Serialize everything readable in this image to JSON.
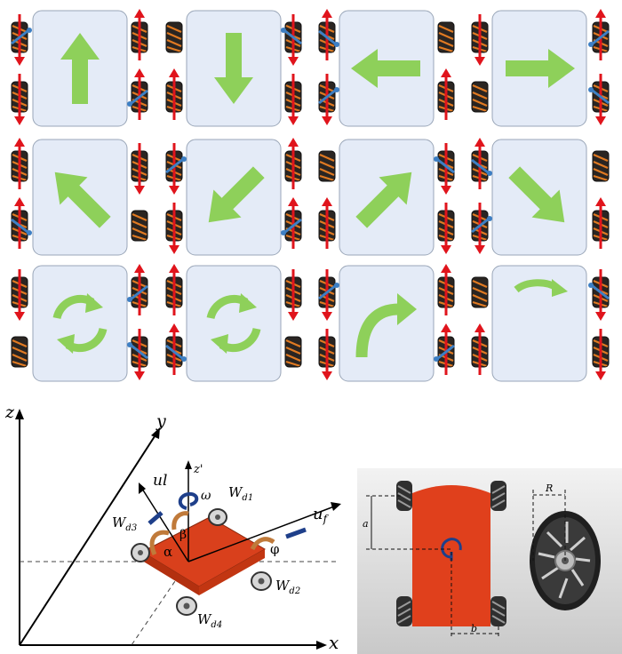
{
  "colors": {
    "arrow_green": "#8ed05a",
    "tile_fill": "#e4ebf7",
    "tile_border": "#9aa6b8",
    "force_red": "#e0141c",
    "roller_blue": "#3d7fc4",
    "chassis_orange": "#d9401c",
    "spin_brown": "#c07a3a",
    "vector_navy": "#1e3f8a"
  },
  "movement_grid": {
    "tiles": [
      {
        "motion": "forward",
        "icon": "arrow-up-icon"
      },
      {
        "motion": "backward",
        "icon": "arrow-down-icon"
      },
      {
        "motion": "left",
        "icon": "arrow-left-icon"
      },
      {
        "motion": "right",
        "icon": "arrow-right-icon"
      },
      {
        "motion": "diagonal-forward-left",
        "icon": "arrow-up-left-icon"
      },
      {
        "motion": "diagonal-backward-left",
        "icon": "arrow-down-left-icon"
      },
      {
        "motion": "diagonal-forward-right",
        "icon": "arrow-up-right-icon"
      },
      {
        "motion": "diagonal-backward-right",
        "icon": "arrow-down-right-icon"
      },
      {
        "motion": "rotate",
        "icon": "circular-arrows-icon"
      },
      {
        "motion": "rotate",
        "icon": "circular-arrows-icon"
      },
      {
        "motion": "turn-right-curve",
        "icon": "curved-arrow-icon"
      },
      {
        "motion": "pivot-turn",
        "icon": "short-curved-arrow-icon"
      }
    ]
  },
  "kinematics": {
    "axis_z": "z",
    "axis_y": "y",
    "axis_x": "x",
    "z_prime": "z'",
    "omega": "ω",
    "forward_velocity": "u",
    "forward_velocity_sub": "f",
    "lateral_velocity": "ul",
    "alpha": "α",
    "beta": "β",
    "phi": "φ",
    "wheels": [
      {
        "base": "W",
        "sub": "d1"
      },
      {
        "base": "W",
        "sub": "d2"
      },
      {
        "base": "W",
        "sub": "d3"
      },
      {
        "base": "W",
        "sub": "d4"
      }
    ]
  },
  "dimensions": {
    "a": "a",
    "b": "b",
    "R": "R"
  }
}
